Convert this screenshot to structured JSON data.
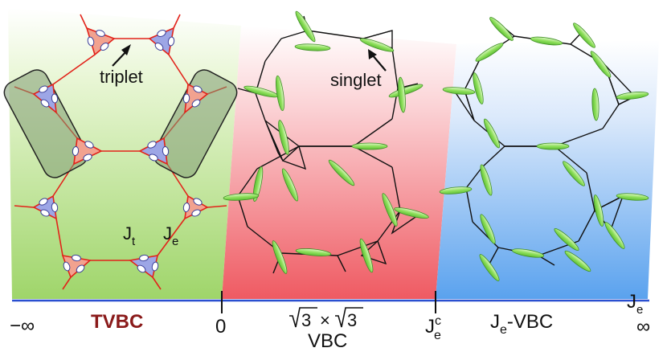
{
  "annotations": {
    "triplet": "triplet",
    "singlet": "singlet",
    "jt": "J",
    "jt_sub": "t",
    "je": "J",
    "je_sub": "e"
  },
  "axis": {
    "neg_inf": "−∞",
    "zero": "0",
    "jec_main": "J",
    "jec_sub": "e",
    "jec_sup": "c",
    "pos_inf": "∞",
    "axis_main": "J",
    "axis_sub": "e"
  },
  "phases": {
    "tvbc": "TVBC",
    "vbc_formula_a": "3",
    "vbc_formula_times": "×",
    "vbc_formula_b": "3",
    "vbc_name": "VBC",
    "je_vbc_main": "J",
    "je_vbc_sub": "e",
    "je_vbc_rest": "-VBC"
  },
  "colors": {
    "green_panel": "#9fd56a",
    "red_panel": "#ef5a62",
    "blue_panel": "#5aa2ee",
    "axis_line": "#2a4fd0",
    "tvbc_label": "#8a1a1a",
    "triplet_bond": "#e2231a",
    "up_triangle": "#f2a28f",
    "down_triangle": "#9da6e6",
    "dimer": "#8fe05c"
  }
}
